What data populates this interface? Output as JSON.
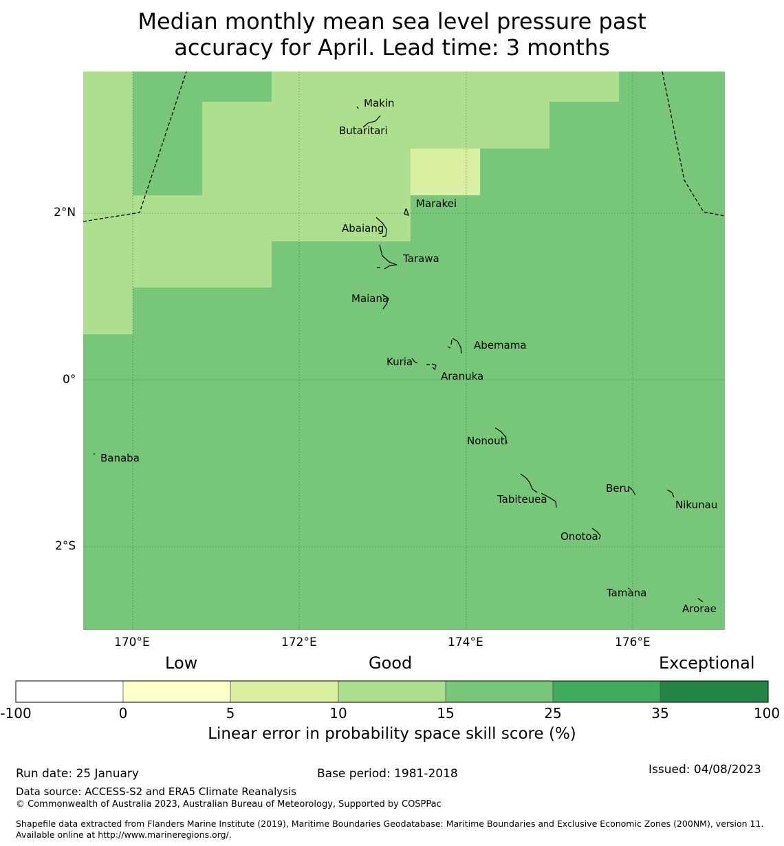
{
  "title": {
    "line1": "Median monthly mean sea level pressure past",
    "line2": "accuracy for April. Lead time: 3 months"
  },
  "map": {
    "x_ticks": [
      "170°E",
      "172°E",
      "174°E",
      "176°E"
    ],
    "y_ticks": [
      "2°N",
      "0°",
      "2°S"
    ],
    "places": [
      "Makin",
      "Butaritari",
      "Marakei",
      "Abaiang",
      "Tarawa",
      "Maiana",
      "Abemama",
      "Kuria",
      "Aranuka",
      "Banaba",
      "Nonouti",
      "Beru",
      "Nikunau",
      "Tabiteuea",
      "Onotoa",
      "Tamana",
      "Arorae"
    ],
    "colors": {
      "cat_5_10": "#d9efa2",
      "cat_10_15": "#addf8e",
      "cat_15_25": "#78c679",
      "boundary": "#000000",
      "land": "#000000"
    }
  },
  "colorbar": {
    "words": {
      "low": "Low",
      "good": "Good",
      "exceptional": "Exceptional"
    },
    "ticks": [
      "-100",
      "0",
      "5",
      "10",
      "15",
      "25",
      "35",
      "100"
    ],
    "segment_colors": [
      "#ffffff",
      "#ffffcc",
      "#d9efa2",
      "#addf8e",
      "#78c679",
      "#41ab5d",
      "#238443"
    ],
    "label": "Linear error in probability space skill score (%)"
  },
  "footer": {
    "run_date": "Run date: 25 January",
    "base_period": "Base period: 1981-2018",
    "issued": "Issued: 04/08/2023",
    "data_source": "Data source: ACCESS-S2 and ERA5 Climate Reanalysis",
    "copyright": "© Commonwealth of Australia 2023, Australian Bureau of Meteorology, Supported by COSPPac",
    "shapefile": "Shapefile data extracted from Flanders Marine Institute (2019), Maritime Boundaries Geodatabase: Maritime Boundaries and Exclusive Economic Zones (200NM), version 11. Available online at http://www.marineregions.org/."
  }
}
